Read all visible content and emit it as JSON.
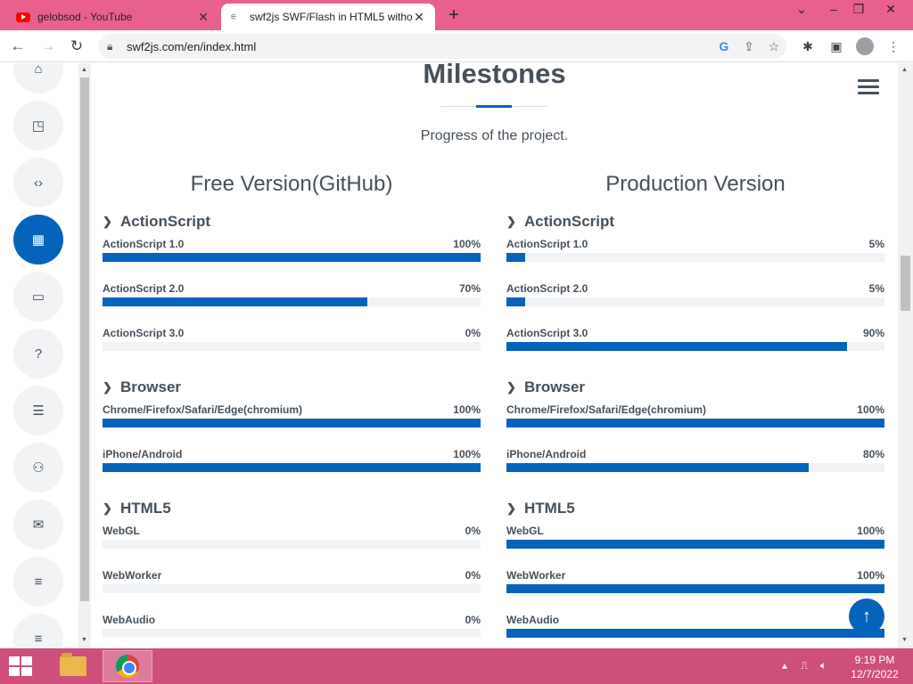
{
  "browser": {
    "tabs": [
      {
        "title": "gelobsod - YouTube",
        "icon": "youtube-icon",
        "active": false
      },
      {
        "title": "swf2js SWF/Flash in HTML5 witho",
        "icon": "swf2js-icon",
        "active": true
      }
    ],
    "url": "swf2js.com/en/index.html"
  },
  "section": {
    "title": "Milestones",
    "subtitle": "Progress of the project."
  },
  "columns": [
    {
      "title": "Free Version(GitHub)",
      "groups": [
        {
          "name": "ActionScript",
          "items": [
            {
              "label": "ActionScript 1.0",
              "value": "100%",
              "pct": 100
            },
            {
              "label": "ActionScript 2.0",
              "value": "70%",
              "pct": 70
            },
            {
              "label": "ActionScript 3.0",
              "value": "0%",
              "pct": 0
            }
          ]
        },
        {
          "name": "Browser",
          "items": [
            {
              "label": "Chrome/Firefox/Safari/Edge(chromium)",
              "value": "100%",
              "pct": 100
            },
            {
              "label": "iPhone/Android",
              "value": "100%",
              "pct": 100
            }
          ]
        },
        {
          "name": "HTML5",
          "items": [
            {
              "label": "WebGL",
              "value": "0%",
              "pct": 0
            },
            {
              "label": "WebWorker",
              "value": "0%",
              "pct": 0
            },
            {
              "label": "WebAudio",
              "value": "0%",
              "pct": 0
            }
          ]
        }
      ]
    },
    {
      "title": "Production Version",
      "groups": [
        {
          "name": "ActionScript",
          "items": [
            {
              "label": "ActionScript 1.0",
              "value": "5%",
              "pct": 5
            },
            {
              "label": "ActionScript 2.0",
              "value": "5%",
              "pct": 5
            },
            {
              "label": "ActionScript 3.0",
              "value": "90%",
              "pct": 90
            }
          ]
        },
        {
          "name": "Browser",
          "items": [
            {
              "label": "Chrome/Firefox/Safari/Edge(chromium)",
              "value": "100%",
              "pct": 100
            },
            {
              "label": "iPhone/Android",
              "value": "80%",
              "pct": 80
            }
          ]
        },
        {
          "name": "HTML5",
          "items": [
            {
              "label": "WebGL",
              "value": "100%",
              "pct": 100
            },
            {
              "label": "WebWorker",
              "value": "100%",
              "pct": 100
            },
            {
              "label": "WebAudio",
              "value": "",
              "pct": 100
            }
          ]
        }
      ]
    }
  ],
  "sidenav": [
    {
      "icon": "home-icon",
      "glyph": "⌂",
      "active": false
    },
    {
      "icon": "sticky-note-icon",
      "glyph": "◳",
      "active": false
    },
    {
      "icon": "code-icon",
      "glyph": "‹›",
      "active": false
    },
    {
      "icon": "calendar-icon",
      "glyph": "▦",
      "active": true
    },
    {
      "icon": "presentation-icon",
      "glyph": "▭",
      "active": false
    },
    {
      "icon": "question-icon",
      "glyph": "?",
      "active": false
    },
    {
      "icon": "document-icon",
      "glyph": "☰",
      "active": false
    },
    {
      "icon": "people-icon",
      "glyph": "⚇",
      "active": false
    },
    {
      "icon": "mail-icon",
      "glyph": "✉",
      "active": false
    },
    {
      "icon": "list-icon",
      "glyph": "≡",
      "active": false
    },
    {
      "icon": "menu-icon",
      "glyph": "≡",
      "active": false
    }
  ],
  "taskbar": {
    "time": "9:19 PM",
    "date": "12/7/2022"
  },
  "colors": {
    "accent": "#0563bb",
    "tabstrip": "#e8618c",
    "taskbar": "#cf4f7c"
  }
}
